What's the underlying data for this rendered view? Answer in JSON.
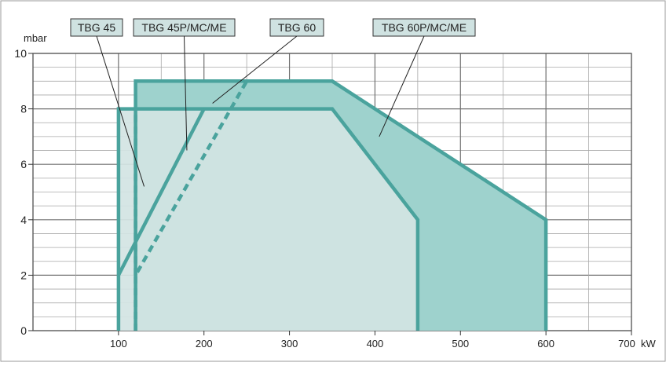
{
  "chart_data": {
    "type": "area",
    "title": "",
    "xlabel": "",
    "ylabel": "",
    "x_unit": "kW",
    "y_unit": "mbar",
    "xlim": [
      0,
      700
    ],
    "ylim": [
      0,
      10
    ],
    "x_ticks": [
      {
        "value": 100,
        "label": "100"
      },
      {
        "value": 200,
        "label": "200"
      },
      {
        "value": 300,
        "label": "300"
      },
      {
        "value": 400,
        "label": "400"
      },
      {
        "value": 500,
        "label": "500"
      },
      {
        "value": 600,
        "label": "600"
      },
      {
        "value": 700,
        "label": "700"
      }
    ],
    "y_ticks": [
      {
        "value": 0,
        "label": "0"
      },
      {
        "value": 2,
        "label": "2"
      },
      {
        "value": 4,
        "label": "4"
      },
      {
        "value": 6,
        "label": "6"
      },
      {
        "value": 8,
        "label": "8"
      },
      {
        "value": 10,
        "label": "10"
      }
    ],
    "grid": true,
    "colors": {
      "line": "#4aa39d",
      "fill_light": "#d2e4e3",
      "fill_dark": "#9ed2cd",
      "grid": "#a8a8a8",
      "grid_major": "#707070",
      "label_box": "#cfe2e1"
    },
    "series": [
      {
        "name": "TBG 45",
        "line": "solid",
        "points": [
          [
            100,
            0
          ],
          [
            100,
            8
          ],
          [
            350,
            8
          ],
          [
            450,
            4
          ],
          [
            450,
            0
          ]
        ]
      },
      {
        "name": "TBG 45P/MC/ME",
        "line": "solid",
        "points": [
          [
            100,
            2
          ],
          [
            200,
            8
          ]
        ]
      },
      {
        "name": "TBG 60",
        "line": "solid",
        "points": [
          [
            120,
            0
          ],
          [
            120,
            9
          ],
          [
            350,
            9
          ],
          [
            600,
            4
          ],
          [
            600,
            0
          ]
        ]
      },
      {
        "name": "TBG 60P/MC/ME",
        "line": "dashed",
        "points": [
          [
            120,
            0
          ],
          [
            120,
            2
          ],
          [
            250,
            9
          ]
        ]
      }
    ],
    "inner_dash": {
      "points": [
        [
          120,
          2
        ],
        [
          120,
          8
        ]
      ]
    },
    "labels": [
      {
        "text": "TBG 45",
        "leader_to": [
          130,
          5.2
        ]
      },
      {
        "text": "TBG 45P/MC/ME",
        "leader_to": [
          180,
          6.5
        ]
      },
      {
        "text": "TBG 60",
        "leader_to": [
          210,
          8.2
        ]
      },
      {
        "text": "TBG 60P/MC/ME",
        "leader_to": [
          405,
          7.0
        ]
      }
    ]
  }
}
